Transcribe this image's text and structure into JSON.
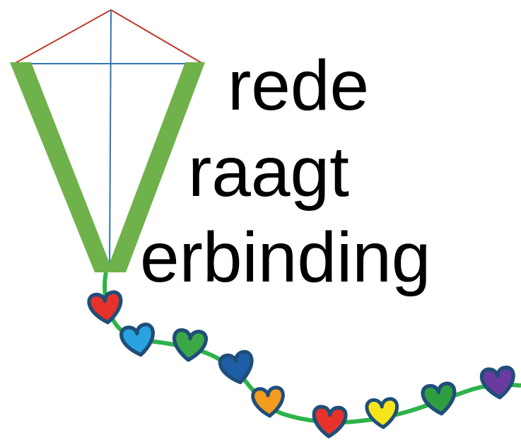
{
  "logo": {
    "words": [
      "rede",
      "raagt",
      "erbinding"
    ]
  }
}
